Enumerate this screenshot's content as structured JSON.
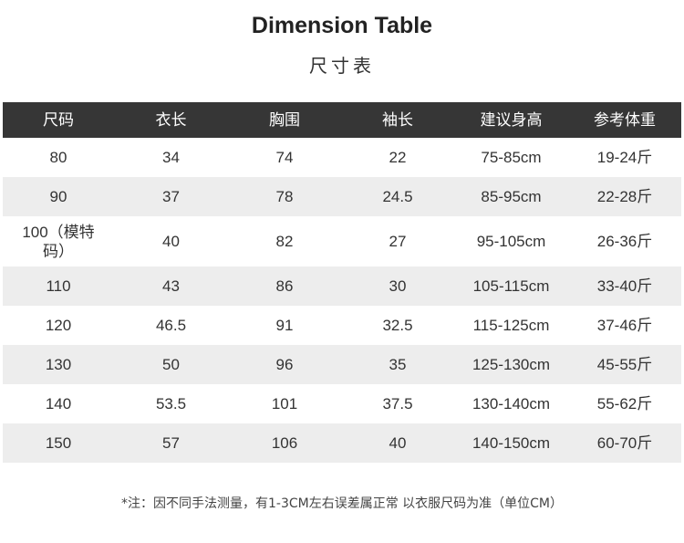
{
  "title": "Dimension Table",
  "subtitle": "尺寸表",
  "table": {
    "headers": [
      "尺码",
      "衣长",
      "胸围",
      "袖长",
      "建议身高",
      "参考体重"
    ],
    "rows": [
      [
        "80",
        "34",
        "74",
        "22",
        "75-85cm",
        "19-24斤"
      ],
      [
        "90",
        "37",
        "78",
        "24.5",
        "85-95cm",
        "22-28斤"
      ],
      [
        "100（模特码）",
        "40",
        "82",
        "27",
        "95-105cm",
        "26-36斤"
      ],
      [
        "110",
        "43",
        "86",
        "30",
        "105-115cm",
        "33-40斤"
      ],
      [
        "120",
        "46.5",
        "91",
        "32.5",
        "115-125cm",
        "37-46斤"
      ],
      [
        "130",
        "50",
        "96",
        "35",
        "125-130cm",
        "45-55斤"
      ],
      [
        "140",
        "53.5",
        "101",
        "37.5",
        "130-140cm",
        "55-62斤"
      ],
      [
        "150",
        "57",
        "106",
        "40",
        "140-150cm",
        "60-70斤"
      ]
    ]
  },
  "note": "*注：因不同手法测量，有1-3CM左右误差属正常  以衣服尺码为准（单位CM）",
  "colors": {
    "header_bg": "#363636",
    "alt_row_bg": "#ededed"
  }
}
